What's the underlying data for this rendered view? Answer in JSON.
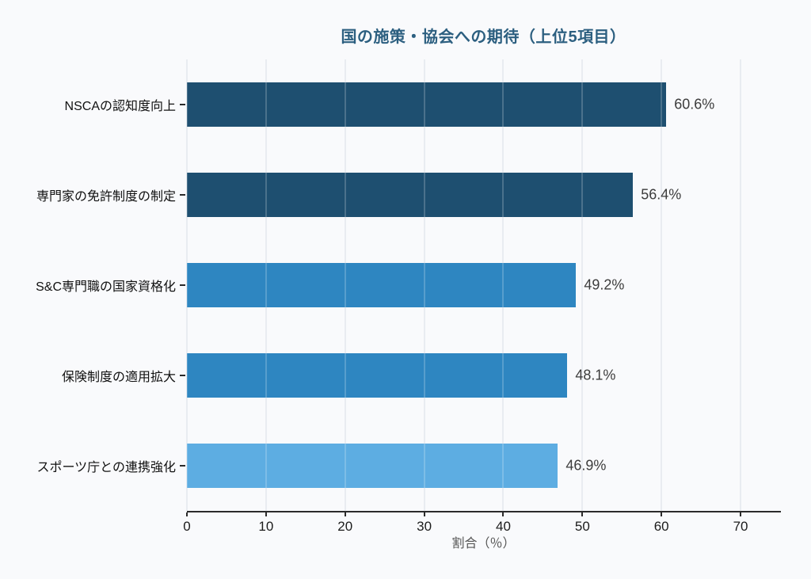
{
  "title": {
    "prefix": "国の施策・協会への期待（上位",
    "number": "5",
    "suffix": "項目）"
  },
  "chart_data": {
    "type": "bar",
    "orientation": "horizontal",
    "title": "国の施策・協会への期待（上位5項目）",
    "categories": [
      "NSCAの認知度向上",
      "専門家の免許制度の制定",
      "S&C専門職の国家資格化",
      "保険制度の適用拡大",
      "スポーツ庁との連携強化"
    ],
    "values": [
      60.6,
      56.4,
      49.2,
      48.1,
      46.9
    ],
    "value_labels": [
      "60.6%",
      "56.4%",
      "49.2%",
      "48.1%",
      "46.9%"
    ],
    "bar_colors": [
      "#1e4f70",
      "#1e4f70",
      "#2e86c1",
      "#2e86c1",
      "#5dade2"
    ],
    "xlabel": "割合（％）",
    "ylabel": "",
    "x_ticks": [
      0,
      10,
      20,
      30,
      40,
      50,
      60,
      70
    ],
    "x_tick_labels": [
      "0",
      "10",
      "20",
      "30",
      "40",
      "50",
      "60",
      "70"
    ],
    "xlim": [
      0,
      75
    ],
    "grid": true,
    "legend": false
  },
  "colors": {
    "background": "#f9fafc",
    "title": "#2c5f80",
    "grid": "#e4e8ee",
    "axis": "#2b2b2b",
    "tick_label": "#1c1c1c",
    "category_label": "#111111",
    "value_label": "#3c3c3c",
    "xlabel": "#555555"
  }
}
